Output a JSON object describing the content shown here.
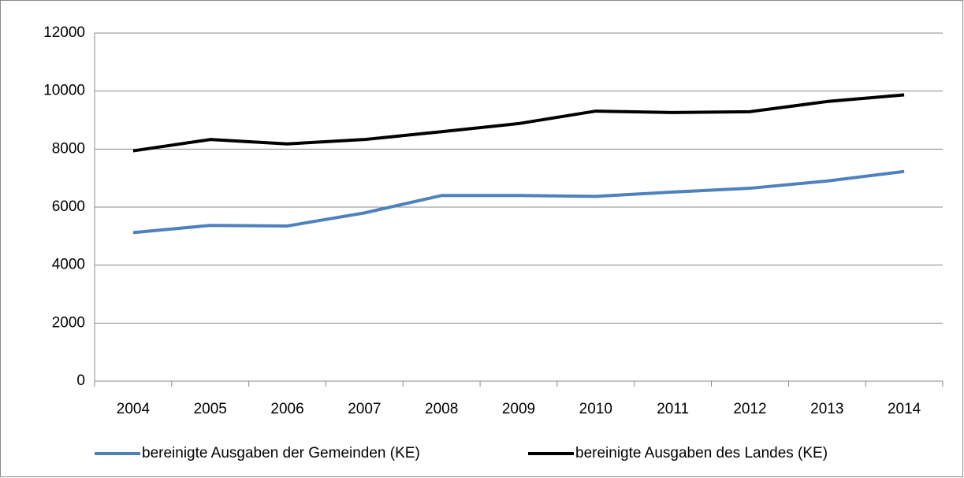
{
  "chart_data": {
    "type": "line",
    "categories": [
      "2004",
      "2005",
      "2006",
      "2007",
      "2008",
      "2009",
      "2010",
      "2011",
      "2012",
      "2013",
      "2014"
    ],
    "series": [
      {
        "name": "bereinigte Ausgaben der Gemeinden (KE)",
        "color": "#4f81bd",
        "values": [
          5120,
          5370,
          5350,
          5800,
          6400,
          6400,
          6370,
          6520,
          6650,
          6900,
          7230
        ]
      },
      {
        "name": "bereinigte Ausgaben des Landes (KE)",
        "color": "#000000",
        "values": [
          7940,
          8330,
          8180,
          8330,
          8600,
          8880,
          9310,
          9260,
          9290,
          9640,
          9870
        ]
      }
    ],
    "ylim": [
      0,
      12000
    ],
    "yticks": [
      0,
      2000,
      4000,
      6000,
      8000,
      10000,
      12000
    ],
    "grid": true,
    "legend": "bottom"
  }
}
